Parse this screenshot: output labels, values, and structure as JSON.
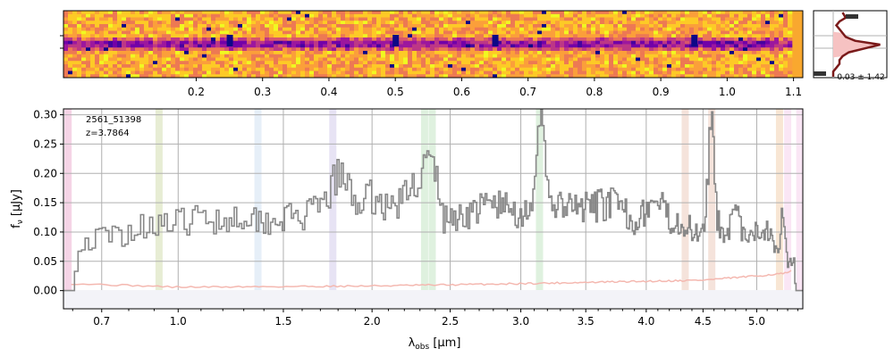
{
  "chart_data": [
    {
      "type": "heatmap",
      "panel": "2d-spectrum",
      "colormap": "plasma",
      "x_ticks": [
        "0.2",
        "0.3",
        "0.4",
        "0.5",
        "0.6",
        "0.7",
        "0.8",
        "0.9",
        "1.0",
        "1.1"
      ],
      "x_tick_values": [
        0.2,
        0.3,
        0.4,
        0.5,
        0.6,
        0.7,
        0.8,
        0.9,
        1.0,
        1.1
      ],
      "xlim": [
        0.0,
        1.114
      ],
      "trace_features": [
        0.25,
        0.5,
        0.65,
        0.95
      ],
      "y_ticks": 2
    },
    {
      "type": "line",
      "panel": "profile-histogram",
      "annotation": "0.03 ± 1.42",
      "profile_y": [
        0.0,
        0.08,
        0.14,
        0.2,
        0.26,
        0.32,
        0.38,
        0.44,
        0.5,
        0.56,
        0.62,
        0.68,
        0.74,
        0.8,
        0.86,
        0.92,
        1.0
      ],
      "profile_x": [
        0.35,
        0.4,
        0.3,
        0.25,
        0.3,
        0.35,
        0.4,
        0.55,
        0.95,
        0.7,
        0.45,
        0.35,
        0.3,
        0.3,
        0.25,
        0.2,
        0.2
      ],
      "color": "#7a1a1a"
    },
    {
      "type": "line",
      "panel": "1d-spectrum",
      "title": "",
      "legend_line1": "2561_51398",
      "legend_line2": "z=3.7864",
      "xlabel_main": "λ",
      "xlabel_sub": "obs",
      "xlabel_unit": " [μm]",
      "ylabel": "f_ν [μJy]",
      "ylabel_main": "f",
      "ylabel_sub": "ν",
      "ylabel_unit": " [μJy]",
      "x_ticks": [
        "0.7",
        "1.0",
        "1.5",
        "2.0",
        "2.5",
        "3.0",
        "3.5",
        "4.0",
        "4.5",
        "5.0"
      ],
      "x_tick_values": [
        0.7,
        1.0,
        1.5,
        2.0,
        2.5,
        3.0,
        3.5,
        4.0,
        4.5,
        5.0
      ],
      "y_ticks": [
        "0.00",
        "0.05",
        "0.10",
        "0.15",
        "0.20",
        "0.25",
        "0.30"
      ],
      "y_tick_values": [
        0.0,
        0.05,
        0.1,
        0.15,
        0.2,
        0.25,
        0.3
      ],
      "xlim": [
        0.57,
        5.45
      ],
      "ylim": [
        -0.031,
        0.31
      ],
      "grid": true,
      "spectrum_color": "#888888",
      "error_color": "#f4b8b0",
      "emission_bands": [
        {
          "x": 0.585,
          "color": "#e8a0c8"
        },
        {
          "x": 0.92,
          "color": "#c9d6a0"
        },
        {
          "x": 1.37,
          "color": "#c8dcef"
        },
        {
          "x": 1.77,
          "color": "#c9c0e6"
        },
        {
          "x": 2.33,
          "color": "#b9e0b9"
        },
        {
          "x": 2.38,
          "color": "#b9e0b9"
        },
        {
          "x": 3.14,
          "color": "#b9e0b9"
        },
        {
          "x": 4.34,
          "color": "#e8c0b0"
        },
        {
          "x": 4.58,
          "color": "#e8c0b0"
        },
        {
          "x": 5.22,
          "color": "#f0c8a0"
        },
        {
          "x": 5.3,
          "color": "#f4c8e8"
        },
        {
          "x": 5.42,
          "color": "#f4c8e8"
        }
      ],
      "spectrum_knots": [
        [
          0.57,
          0.0
        ],
        [
          0.595,
          0.0
        ],
        [
          0.6,
          0.04
        ],
        [
          0.62,
          0.07
        ],
        [
          0.65,
          0.085
        ],
        [
          0.7,
          0.09
        ],
        [
          0.75,
          0.095
        ],
        [
          0.8,
          0.1
        ],
        [
          0.85,
          0.11
        ],
        [
          0.9,
          0.12
        ],
        [
          0.95,
          0.11
        ],
        [
          1.0,
          0.115
        ],
        [
          1.1,
          0.125
        ],
        [
          1.2,
          0.12
        ],
        [
          1.3,
          0.13
        ],
        [
          1.4,
          0.12
        ],
        [
          1.5,
          0.125
        ],
        [
          1.6,
          0.125
        ],
        [
          1.7,
          0.14
        ],
        [
          1.8,
          0.2
        ],
        [
          1.9,
          0.15
        ],
        [
          2.0,
          0.16
        ],
        [
          2.1,
          0.14
        ],
        [
          2.2,
          0.16
        ],
        [
          2.3,
          0.2
        ],
        [
          2.35,
          0.22
        ],
        [
          2.4,
          0.2
        ],
        [
          2.45,
          0.12
        ],
        [
          2.6,
          0.13
        ],
        [
          2.8,
          0.15
        ],
        [
          3.0,
          0.13
        ],
        [
          3.1,
          0.16
        ],
        [
          3.15,
          0.32
        ],
        [
          3.2,
          0.16
        ],
        [
          3.3,
          0.14
        ],
        [
          3.5,
          0.14
        ],
        [
          3.7,
          0.15
        ],
        [
          3.9,
          0.12
        ],
        [
          4.0,
          0.14
        ],
        [
          4.1,
          0.15
        ],
        [
          4.2,
          0.12
        ],
        [
          4.3,
          0.12
        ],
        [
          4.4,
          0.1
        ],
        [
          4.5,
          0.11
        ],
        [
          4.58,
          0.31
        ],
        [
          4.62,
          0.12
        ],
        [
          4.7,
          0.1
        ],
        [
          4.8,
          0.13
        ],
        [
          4.9,
          0.08
        ],
        [
          5.0,
          0.1
        ],
        [
          5.1,
          0.11
        ],
        [
          5.2,
          0.07
        ],
        [
          5.25,
          0.14
        ],
        [
          5.3,
          0.05
        ],
        [
          5.35,
          0.06
        ],
        [
          5.38,
          0.0
        ],
        [
          5.45,
          0.0
        ]
      ],
      "error_knots": [
        [
          0.595,
          0.012
        ],
        [
          1.0,
          0.006
        ],
        [
          2.0,
          0.008
        ],
        [
          3.0,
          0.012
        ],
        [
          4.0,
          0.016
        ],
        [
          4.5,
          0.018
        ],
        [
          5.0,
          0.025
        ],
        [
          5.3,
          0.03
        ],
        [
          5.35,
          0.035
        ]
      ]
    }
  ]
}
